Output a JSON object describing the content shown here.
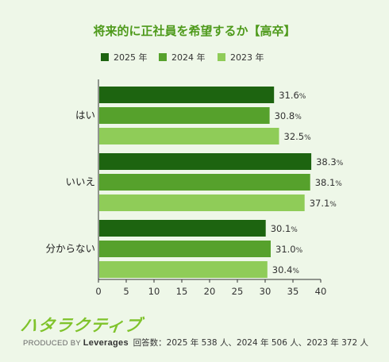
{
  "title": "将来的に正社員を希望するか【高卒】",
  "colors": {
    "background": "#eef7e8",
    "title": "#4e9a1b",
    "series_2025": "#1d6410",
    "series_2024": "#56a12c",
    "series_2023": "#8fcc58",
    "logo": "#7fc32b"
  },
  "chart_data": {
    "type": "bar",
    "orientation": "horizontal",
    "title": "将来的に正社員を希望するか【高卒】",
    "categories": [
      "はい",
      "いいえ",
      "分からない"
    ],
    "series": [
      {
        "name": "2025 年",
        "values": [
          31.6,
          38.3,
          30.1
        ]
      },
      {
        "name": "2024 年",
        "values": [
          30.8,
          38.1,
          31.0
        ]
      },
      {
        "name": "2023 年",
        "values": [
          32.5,
          37.1,
          30.4
        ]
      }
    ],
    "xlim": [
      0,
      40
    ],
    "xticks": [
      0,
      5,
      10,
      15,
      20,
      25,
      30,
      35,
      40
    ],
    "value_suffix": "%",
    "legend_position": "top",
    "grid": false
  },
  "logo": {
    "name": "ハタラクティブ",
    "produced_by": "PRODUCED BY",
    "company": "Leverages"
  },
  "footnote": "回答数：2025 年 538 人、2024 年 506 人、2023 年 372 人"
}
